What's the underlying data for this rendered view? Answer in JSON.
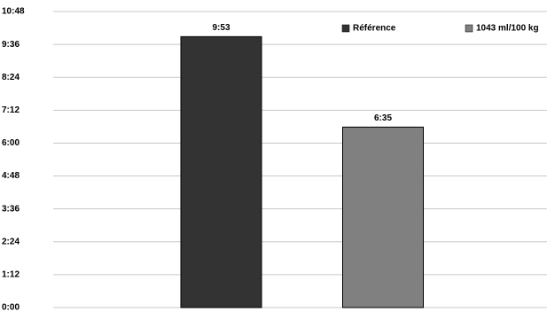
{
  "chart_data": {
    "type": "bar",
    "series": [
      {
        "name": "Référence",
        "color": "#333333",
        "values": [
          593
        ],
        "value_labels": [
          "9:53"
        ]
      },
      {
        "name": "1043 ml/100 kg",
        "color": "#808080",
        "values": [
          395
        ],
        "value_labels": [
          "6:35"
        ]
      }
    ],
    "ylim": [
      0,
      648
    ],
    "yticks": [
      {
        "value": 0,
        "label": "0:00"
      },
      {
        "value": 72,
        "label": "1:12"
      },
      {
        "value": 144,
        "label": "2:24"
      },
      {
        "value": 216,
        "label": "3:36"
      },
      {
        "value": 288,
        "label": "4:48"
      },
      {
        "value": 360,
        "label": "6:00"
      },
      {
        "value": 432,
        "label": "7:12"
      },
      {
        "value": 504,
        "label": "8:24"
      },
      {
        "value": 576,
        "label": "9:36"
      },
      {
        "value": 648,
        "label": "10:48"
      }
    ],
    "grid": true
  }
}
